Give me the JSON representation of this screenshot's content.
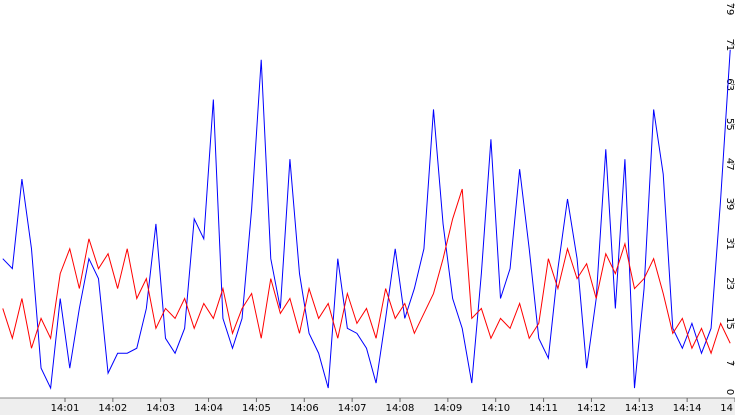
{
  "chart_data": {
    "type": "line",
    "x": [
      -0.3,
      -0.1,
      0.1,
      0.3,
      0.5,
      0.7,
      0.9,
      1.1,
      1.3,
      1.5,
      1.7,
      1.9,
      2.1,
      2.3,
      2.5,
      2.7,
      2.9,
      3.1,
      3.3,
      3.5,
      3.7,
      3.9,
      4.1,
      4.3,
      4.5,
      4.7,
      4.9,
      5.1,
      5.3,
      5.5,
      5.7,
      5.9,
      6.1,
      6.3,
      6.5,
      6.7,
      6.9,
      7.1,
      7.3,
      7.5,
      7.7,
      7.9,
      8.1,
      8.3,
      8.5,
      8.7,
      8.9,
      9.1,
      9.3,
      9.5,
      9.7,
      9.9,
      10.1,
      10.3,
      10.5,
      10.7,
      10.9,
      11.1,
      11.3,
      11.5,
      11.7,
      11.9,
      12.1,
      12.3,
      12.5,
      12.7,
      12.9,
      13.1,
      13.3,
      13.5,
      13.7,
      13.9,
      14.1,
      14.3,
      14.5,
      14.7,
      14.9
    ],
    "series": [
      {
        "color": "#0000ff",
        "values": [
          28,
          26,
          44,
          30,
          6,
          2,
          20,
          6,
          18,
          28,
          24,
          5,
          9,
          9,
          10,
          18,
          35,
          12,
          9,
          14,
          36,
          32,
          60,
          16,
          10,
          16,
          38,
          68,
          28,
          18,
          48,
          25,
          13,
          9,
          2,
          28,
          14,
          13,
          10,
          3,
          16,
          30,
          16,
          22,
          30,
          58,
          35,
          20,
          14,
          3,
          25,
          52,
          20,
          26,
          46,
          30,
          12,
          8,
          26,
          40,
          28,
          6,
          20,
          50,
          18,
          48,
          2,
          22,
          58,
          45,
          14,
          10,
          15,
          9,
          14,
          40,
          70
        ]
      },
      {
        "color": "#ff0000",
        "values": [
          18,
          12,
          20,
          10,
          16,
          12,
          25,
          30,
          22,
          32,
          26,
          29,
          22,
          30,
          20,
          24,
          14,
          18,
          16,
          20,
          14,
          19,
          16,
          22,
          13,
          18,
          21,
          12,
          24,
          17,
          20,
          13,
          22,
          16,
          19,
          12,
          21,
          15,
          18,
          12,
          22,
          16,
          19,
          13,
          17,
          21,
          28,
          36,
          42,
          16,
          18,
          12,
          16,
          14,
          19,
          12,
          15,
          28,
          22,
          30,
          24,
          27,
          20,
          29,
          25,
          31,
          22,
          24,
          28,
          21,
          13,
          16,
          10,
          14,
          9,
          15,
          11
        ]
      }
    ],
    "xlim": [
      -0.358,
      15.0
    ],
    "xticks": [
      {
        "value": 1,
        "label": "14:01"
      },
      {
        "value": 2,
        "label": "14:02"
      },
      {
        "value": 3,
        "label": "14:03"
      },
      {
        "value": 4,
        "label": "14:04"
      },
      {
        "value": 5,
        "label": "14:05"
      },
      {
        "value": 6,
        "label": "14:06"
      },
      {
        "value": 7,
        "label": "14:07"
      },
      {
        "value": 8,
        "label": "14:08"
      },
      {
        "value": 9,
        "label": "14:09"
      },
      {
        "value": 10,
        "label": "14:10"
      },
      {
        "value": 11,
        "label": "14:11"
      },
      {
        "value": 12,
        "label": "14:12"
      },
      {
        "value": 13,
        "label": "14:13"
      },
      {
        "value": 14,
        "label": "14:14"
      },
      {
        "value": 15,
        "label": "14"
      }
    ],
    "ylim": [
      0,
      79
    ],
    "yticks": [
      0,
      7,
      15,
      23,
      31,
      39,
      47,
      55,
      63,
      71,
      79
    ]
  }
}
